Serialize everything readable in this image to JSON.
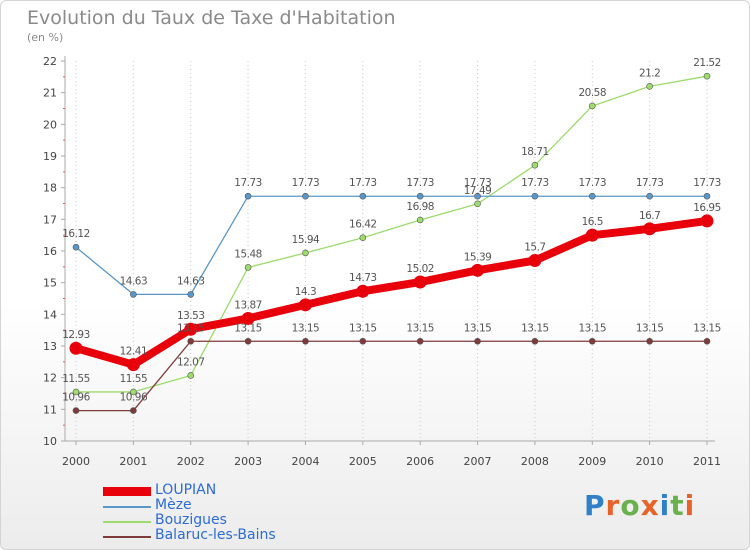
{
  "title": "Evolution du Taux de Taxe d'Habitation",
  "subtitle": "(en %)",
  "logo_text": "Proxiti",
  "chart_data": {
    "type": "line",
    "x": [
      "2000",
      "2001",
      "2002",
      "2003",
      "2004",
      "2005",
      "2006",
      "2007",
      "2008",
      "2009",
      "2010",
      "2011"
    ],
    "ylim": [
      10,
      22
    ],
    "yticks": [
      "10",
      "11",
      "12",
      "13",
      "14",
      "15",
      "16",
      "17",
      "18",
      "19",
      "20",
      "21",
      "22"
    ],
    "grid": "vertical dotted",
    "legend_position": "bottom-left",
    "series": [
      {
        "name": "LOUPIAN",
        "color": "#e8000b",
        "values": [
          12.93,
          12.41,
          13.53,
          13.87,
          14.3,
          14.73,
          15.02,
          15.39,
          15.7,
          16.5,
          16.7,
          16.95
        ],
        "labels": [
          "12.93",
          "12.41",
          "13.53",
          "13.87",
          "14.3",
          "14.73",
          "15.02",
          "15.39",
          "15.7",
          "16.5",
          "16.7",
          "16.95"
        ]
      },
      {
        "name": "Mèze",
        "color": "#5a97c9",
        "values": [
          16.12,
          14.63,
          14.63,
          17.73,
          17.73,
          17.73,
          17.73,
          17.73,
          17.73,
          17.73,
          17.73,
          17.73
        ],
        "labels": [
          "16.12",
          "14.63",
          "14.63",
          "17.73",
          "17.73",
          "17.73",
          "17.73",
          "17.73",
          "17.73",
          "17.73",
          "17.73",
          "17.73"
        ]
      },
      {
        "name": "Bouzigues",
        "color": "#9cdb6c",
        "values": [
          11.55,
          11.55,
          12.07,
          15.48,
          15.94,
          16.42,
          16.98,
          17.49,
          18.71,
          20.58,
          21.2,
          21.52
        ],
        "labels": [
          "11.55",
          "11.55",
          "12.07",
          "15.48",
          "15.94",
          "16.42",
          "16.98",
          "17.49",
          "18.71",
          "20.58",
          "21.2",
          "21.52"
        ]
      },
      {
        "name": "Balaruc-les-Bains",
        "color": "#7f3a3a",
        "values": [
          10.96,
          10.96,
          13.15,
          13.15,
          13.15,
          13.15,
          13.15,
          13.15,
          13.15,
          13.15,
          13.15,
          13.15
        ],
        "labels": [
          "10.96",
          "10.96",
          "13.15",
          "13.15",
          "13.15",
          "13.15",
          "13.15",
          "13.15",
          "13.15",
          "13.15",
          "13.15",
          "13.15"
        ]
      }
    ]
  }
}
